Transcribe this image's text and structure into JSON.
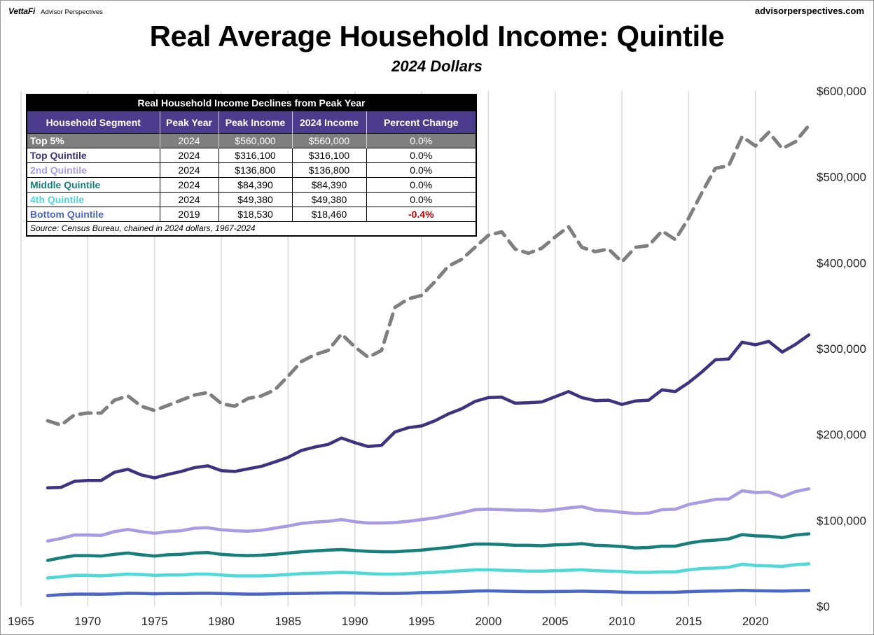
{
  "header": {
    "brand": "VettaFi",
    "brand_sub": "Advisor Perspectives",
    "site": "advisorperspectives.com"
  },
  "chart_data": {
    "type": "line",
    "title": "Real Average Household Income: Quintile",
    "subtitle": "2024 Dollars",
    "xlabel": "",
    "ylabel": "",
    "xlim": [
      1965,
      2024
    ],
    "ylim": [
      0,
      600000
    ],
    "x_ticks": [
      1965,
      1970,
      1975,
      1980,
      1985,
      1990,
      1995,
      2000,
      2005,
      2010,
      2015,
      2020
    ],
    "y_ticks": [
      0,
      100000,
      200000,
      300000,
      400000,
      500000,
      600000
    ],
    "y_tick_labels": [
      "$0",
      "$100,000",
      "$200,000",
      "$300,000",
      "$400,000",
      "$500,000",
      "$600,000"
    ],
    "grid": "vertical",
    "y_axis_position": "right",
    "x": [
      1967,
      1968,
      1969,
      1970,
      1971,
      1972,
      1973,
      1974,
      1975,
      1976,
      1977,
      1978,
      1979,
      1980,
      1981,
      1982,
      1983,
      1984,
      1985,
      1986,
      1987,
      1988,
      1989,
      1990,
      1991,
      1992,
      1993,
      1994,
      1995,
      1996,
      1997,
      1998,
      1999,
      2000,
      2001,
      2002,
      2003,
      2004,
      2005,
      2006,
      2007,
      2008,
      2009,
      2010,
      2011,
      2012,
      2013,
      2014,
      2015,
      2016,
      2017,
      2018,
      2019,
      2020,
      2021,
      2022,
      2023,
      2024
    ],
    "series": [
      {
        "name": "Top 5%",
        "color": "#7f7f7f",
        "dashed": true,
        "values": [
          216000,
          211000,
          223000,
          225000,
          225000,
          240000,
          245000,
          233000,
          228000,
          234000,
          240000,
          246000,
          249000,
          236000,
          233000,
          242000,
          245000,
          252000,
          268000,
          285000,
          293000,
          298000,
          317000,
          302000,
          290000,
          298000,
          348000,
          358000,
          362000,
          378000,
          396000,
          404000,
          418000,
          432000,
          436000,
          416000,
          411000,
          417000,
          430000,
          442000,
          418000,
          413000,
          416000,
          401000,
          418000,
          420000,
          437000,
          427000,
          452000,
          482000,
          510000,
          513000,
          547000,
          536000,
          552000,
          533000,
          541000,
          560000
        ]
      },
      {
        "name": "Top Quintile",
        "color": "#3f3283",
        "dashed": false,
        "values": [
          138000,
          138500,
          145500,
          146500,
          146500,
          156000,
          159500,
          153000,
          149500,
          153500,
          157000,
          161500,
          163500,
          158000,
          157000,
          160000,
          163000,
          168000,
          173500,
          181500,
          185500,
          188500,
          196000,
          190500,
          186000,
          187500,
          203000,
          208000,
          210000,
          216000,
          224000,
          230000,
          238500,
          243000,
          243500,
          236500,
          237000,
          238000,
          244000,
          250000,
          243000,
          239500,
          240000,
          235000,
          239000,
          240000,
          252000,
          250000,
          260500,
          273000,
          287000,
          288000,
          307500,
          304500,
          308500,
          296000,
          305000,
          316100
        ]
      },
      {
        "name": "2nd Quintile",
        "color": "#a99ce4",
        "dashed": false,
        "values": [
          76000,
          79000,
          83000,
          83000,
          82500,
          87000,
          89500,
          87000,
          85000,
          87000,
          88000,
          91000,
          91500,
          89000,
          88000,
          87500,
          88500,
          91000,
          93500,
          96500,
          98000,
          99000,
          101000,
          98500,
          97000,
          97000,
          97500,
          99000,
          101000,
          103000,
          106000,
          109000,
          112500,
          113000,
          112500,
          112000,
          112000,
          111000,
          112500,
          114500,
          116000,
          112000,
          111000,
          109500,
          108000,
          108500,
          112500,
          113000,
          118500,
          121500,
          124500,
          125000,
          134500,
          132500,
          133000,
          127500,
          133500,
          136800
        ]
      },
      {
        "name": "Middle Quintile",
        "color": "#157f7b",
        "dashed": false,
        "values": [
          53500,
          56500,
          59000,
          59000,
          58500,
          60500,
          62000,
          60000,
          58500,
          60000,
          60500,
          62000,
          62500,
          60500,
          59500,
          59000,
          59500,
          60500,
          62000,
          63500,
          64500,
          65500,
          66000,
          65000,
          64000,
          63500,
          63500,
          64500,
          65500,
          67000,
          68500,
          70500,
          72500,
          72500,
          72000,
          71000,
          71000,
          70500,
          71500,
          72000,
          73000,
          71000,
          70500,
          69500,
          68000,
          68500,
          70000,
          70000,
          73500,
          76000,
          77000,
          78500,
          83500,
          82000,
          81500,
          80000,
          83000,
          84390
        ]
      },
      {
        "name": "4th Quintile",
        "color": "#4fd9d9",
        "dashed": false,
        "values": [
          33000,
          34500,
          36000,
          36000,
          35500,
          36500,
          37500,
          37000,
          36000,
          36500,
          36500,
          37500,
          37500,
          36500,
          35500,
          35500,
          35500,
          36000,
          37000,
          38000,
          38500,
          39000,
          39500,
          39000,
          38000,
          37500,
          37500,
          38000,
          39000,
          39500,
          40500,
          41500,
          42500,
          42500,
          42000,
          41500,
          41000,
          41000,
          41500,
          42000,
          42500,
          41500,
          41000,
          40500,
          39500,
          39500,
          40000,
          40000,
          42500,
          44000,
          44500,
          45500,
          49000,
          47500,
          47000,
          46500,
          48500,
          49380
        ]
      },
      {
        "name": "Bottom Quintile",
        "color": "#4a66c8",
        "dashed": false,
        "values": [
          12500,
          13500,
          14200,
          14200,
          14100,
          14500,
          15200,
          15000,
          14600,
          14800,
          14900,
          15100,
          15200,
          14800,
          14400,
          14200,
          14200,
          14500,
          14800,
          15000,
          15300,
          15500,
          15700,
          15500,
          15300,
          15000,
          15000,
          15300,
          16000,
          16200,
          16500,
          17000,
          17800,
          18000,
          17600,
          17300,
          17000,
          17000,
          17200,
          17300,
          17600,
          17200,
          17000,
          16500,
          16200,
          16200,
          16300,
          16400,
          17000,
          17500,
          17800,
          18000,
          18530,
          18100,
          17900,
          17800,
          18200,
          18460
        ]
      }
    ]
  },
  "table": {
    "caption": "Real Household Income Declines from Peak Year",
    "headers": [
      "Household Segment",
      "Peak Year",
      "Peak Income",
      "2024 Income",
      "Percent Change"
    ],
    "rows": [
      {
        "segment": "Top 5%",
        "peak_year": "2024",
        "peak_income": "$560,000",
        "income_2024": "$560,000",
        "pct_change": "0.0%",
        "color": "#ffffff"
      },
      {
        "segment": "Top Quintile",
        "peak_year": "2024",
        "peak_income": "$316,100",
        "income_2024": "$316,100",
        "pct_change": "0.0%",
        "color": "#3f3283"
      },
      {
        "segment": "2nd Quintile",
        "peak_year": "2024",
        "peak_income": "$136,800",
        "income_2024": "$136,800",
        "pct_change": "0.0%",
        "color": "#a99ce4"
      },
      {
        "segment": "Middle Quintile",
        "peak_year": "2024",
        "peak_income": "$84,390",
        "income_2024": "$84,390",
        "pct_change": "0.0%",
        "color": "#157f7b"
      },
      {
        "segment": "4th Quintile",
        "peak_year": "2024",
        "peak_income": "$49,380",
        "income_2024": "$49,380",
        "pct_change": "0.0%",
        "color": "#4fd9d9"
      },
      {
        "segment": "Bottom Quintile",
        "peak_year": "2019",
        "peak_income": "$18,530",
        "income_2024": "$18,460",
        "pct_change": "-0.4%",
        "color": "#4a66c8"
      }
    ],
    "source": "Source: Census Bureau, chained in 2024 dollars, 1967-2024"
  }
}
